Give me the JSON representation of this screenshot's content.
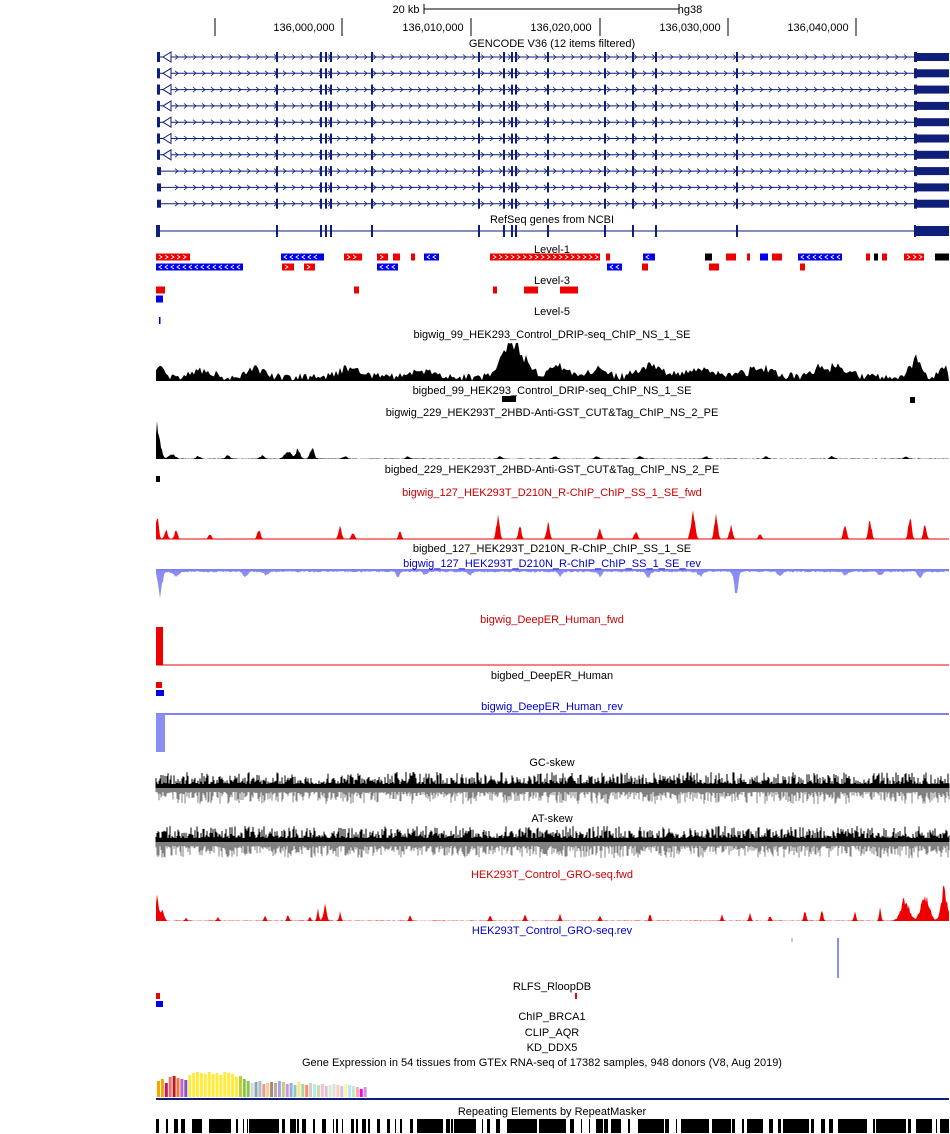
{
  "ruler": {
    "scale_label": "20 kb",
    "assembly": "hg38",
    "positions": [
      "136,000,000",
      "136,010,000",
      "136,020,000",
      "136,030,000",
      "136,040,000"
    ]
  },
  "colors": {
    "gene": "#0f1e78",
    "plus_strand": "#ee0000",
    "minus_strand": "#0000ee",
    "rev_signal": "#8a8ef0",
    "black": "#000000",
    "gray": "#808080",
    "red_label": "#cc0000",
    "blue_label": "#0000cc"
  },
  "tracks": {
    "gencode": "GENCODE V36 (12 items filtered)",
    "refseq": "RefSeq genes from NCBI",
    "level1": "Level-1",
    "level3": "Level-3",
    "level5": "Level-5",
    "bw99": "bigwig_99_HEK293_Control_DRIP-seq_ChIP_NS_1_SE",
    "bb99": "bigbed_99_HEK293_Control_DRIP-seq_ChIP_NS_1_SE",
    "bw229": "bigwig_229_HEK293T_2HBD-Anti-GST_CUT&Tag_ChIP_NS_2_PE",
    "bb229": "bigbed_229_HEK293T_2HBD-Anti-GST_CUT&Tag_ChIP_NS_2_PE",
    "bw127fwd": "bigwig_127_HEK293T_D210N_R-ChIP_ChIP_SS_1_SE_fwd",
    "bb127": "bigbed_127_HEK293T_D210N_R-ChIP_ChIP_SS_1_SE",
    "bw127rev": "bigwig_127_HEK293T_D210N_R-ChIP_ChIP_SS_1_SE_rev",
    "deeperFwd": "bigwig_DeepER_Human_fwd",
    "deeperBed": "bigbed_DeepER_Human",
    "deeperRev": "bigwig_DeepER_Human_rev",
    "gcskew": "GC-skew",
    "atskew": "AT-skew",
    "groFwd": "HEK293T_Control_GRO-seq.fwd",
    "groRev": "HEK293T_Control_GRO-seq.rev",
    "rlfs": "RLFS_RloopDB",
    "brca1": "ChIP_BRCA1",
    "aqr": "CLIP_AQR",
    "ddx5": "KD_DDX5",
    "gtex": "Gene Expression in 54 tissues from GTEx RNA-seq of 17382 samples, 948 donors (V8, Aug 2019)",
    "rmsk": "Repeating Elements by RepeatMasker"
  }
}
